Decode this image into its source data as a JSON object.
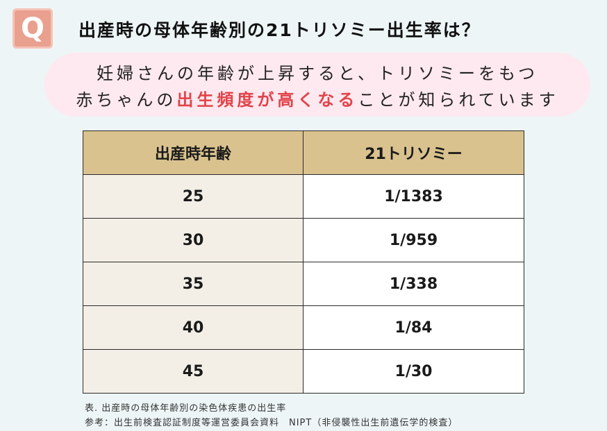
{
  "badge": {
    "letter": "Q"
  },
  "title": "出産時の母体年齢別の21トリソミー出生率は？",
  "callout": {
    "line1": "妊婦さんの年齢が上昇すると、トリソミーをもつ",
    "line2_pre": "赤ちゃんの",
    "line2_highlight": "出生頻度が高くなる",
    "line2_post": "ことが知られています"
  },
  "colors": {
    "badge": "#e9a08e",
    "callout_bg": "#fde9ef",
    "highlight": "#e2434a",
    "table_header": "#d9c28e",
    "age_cell": "#f4efe6",
    "page_bg": "#eef5f7"
  },
  "table": {
    "headers": [
      "出産時年齢",
      "21トリソミー"
    ],
    "rows": [
      {
        "age": "25",
        "rate": "1/1383"
      },
      {
        "age": "30",
        "rate": "1/959"
      },
      {
        "age": "35",
        "rate": "1/338"
      },
      {
        "age": "40",
        "rate": "1/84"
      },
      {
        "age": "45",
        "rate": "1/30"
      }
    ]
  },
  "notes": {
    "caption": "表. 出産時の母体年齢別の染色体疾患の出生率",
    "source": "参考：出生前検査認証制度等運営委員会資料　NIPT（非侵襲性出生前遺伝学的検査）"
  }
}
